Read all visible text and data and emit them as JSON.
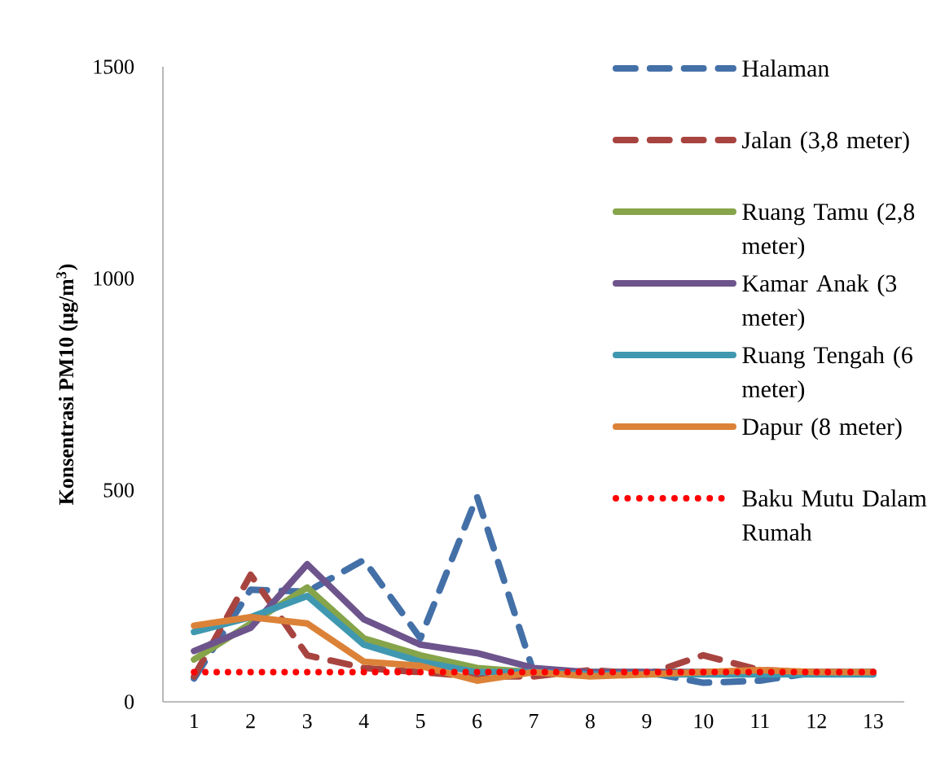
{
  "chart_data": {
    "type": "line",
    "ylabel": "**Konsentrasi PM10 (μg/m$^{3}$)**",
    "categories": [
      "1",
      "2",
      "3",
      "4",
      "5",
      "6",
      "7",
      "8",
      "9",
      "10",
      "11",
      "12",
      "13"
    ],
    "ylim": [
      0,
      1500
    ],
    "yticks": [
      0,
      500,
      1000,
      1500
    ],
    "legend": "top right",
    "grid": false,
    "series": [
      {
        "name": "Halaman",
        "color": "#4470a8",
        "line_style": "dashed",
        "values": [
          55,
          265,
          260,
          335,
          150,
          485,
          70,
          70,
          70,
          45,
          50,
          70,
          70
        ]
      },
      {
        "name": "Jalan (3,8 meter)",
        "color": "#a84440",
        "line_style": "dashed",
        "values": [
          60,
          300,
          110,
          80,
          70,
          60,
          60,
          75,
          65,
          110,
          75,
          70,
          65
        ]
      },
      {
        "name": "Ruang Tamu (2,8 meter)",
        "color": "#86a44a",
        "line_style": "solid",
        "values": [
          100,
          185,
          270,
          150,
          110,
          80,
          70,
          70,
          70,
          70,
          70,
          70,
          70
        ]
      },
      {
        "name": "Kamar Anak (3 meter)",
        "color": "#6e548c",
        "line_style": "solid",
        "values": [
          120,
          175,
          325,
          195,
          135,
          115,
          80,
          70,
          70,
          70,
          70,
          70,
          70
        ]
      },
      {
        "name": "Ruang Tengah (6 meter)",
        "color": "#3f98b0",
        "line_style": "solid",
        "values": [
          165,
          200,
          250,
          135,
          95,
          70,
          70,
          65,
          65,
          65,
          65,
          65,
          65
        ]
      },
      {
        "name": "Dapur (8 meter)",
        "color": "#dc8238",
        "line_style": "solid",
        "values": [
          180,
          200,
          185,
          95,
          85,
          50,
          70,
          60,
          65,
          70,
          75,
          70,
          70
        ]
      },
      {
        "name": "Baku Mutu Dalam Rumah",
        "color": "#ff0000",
        "line_style": "dotted",
        "values": [
          70,
          70,
          70,
          70,
          70,
          70,
          70,
          70,
          70,
          70,
          70,
          70,
          70
        ]
      }
    ]
  }
}
